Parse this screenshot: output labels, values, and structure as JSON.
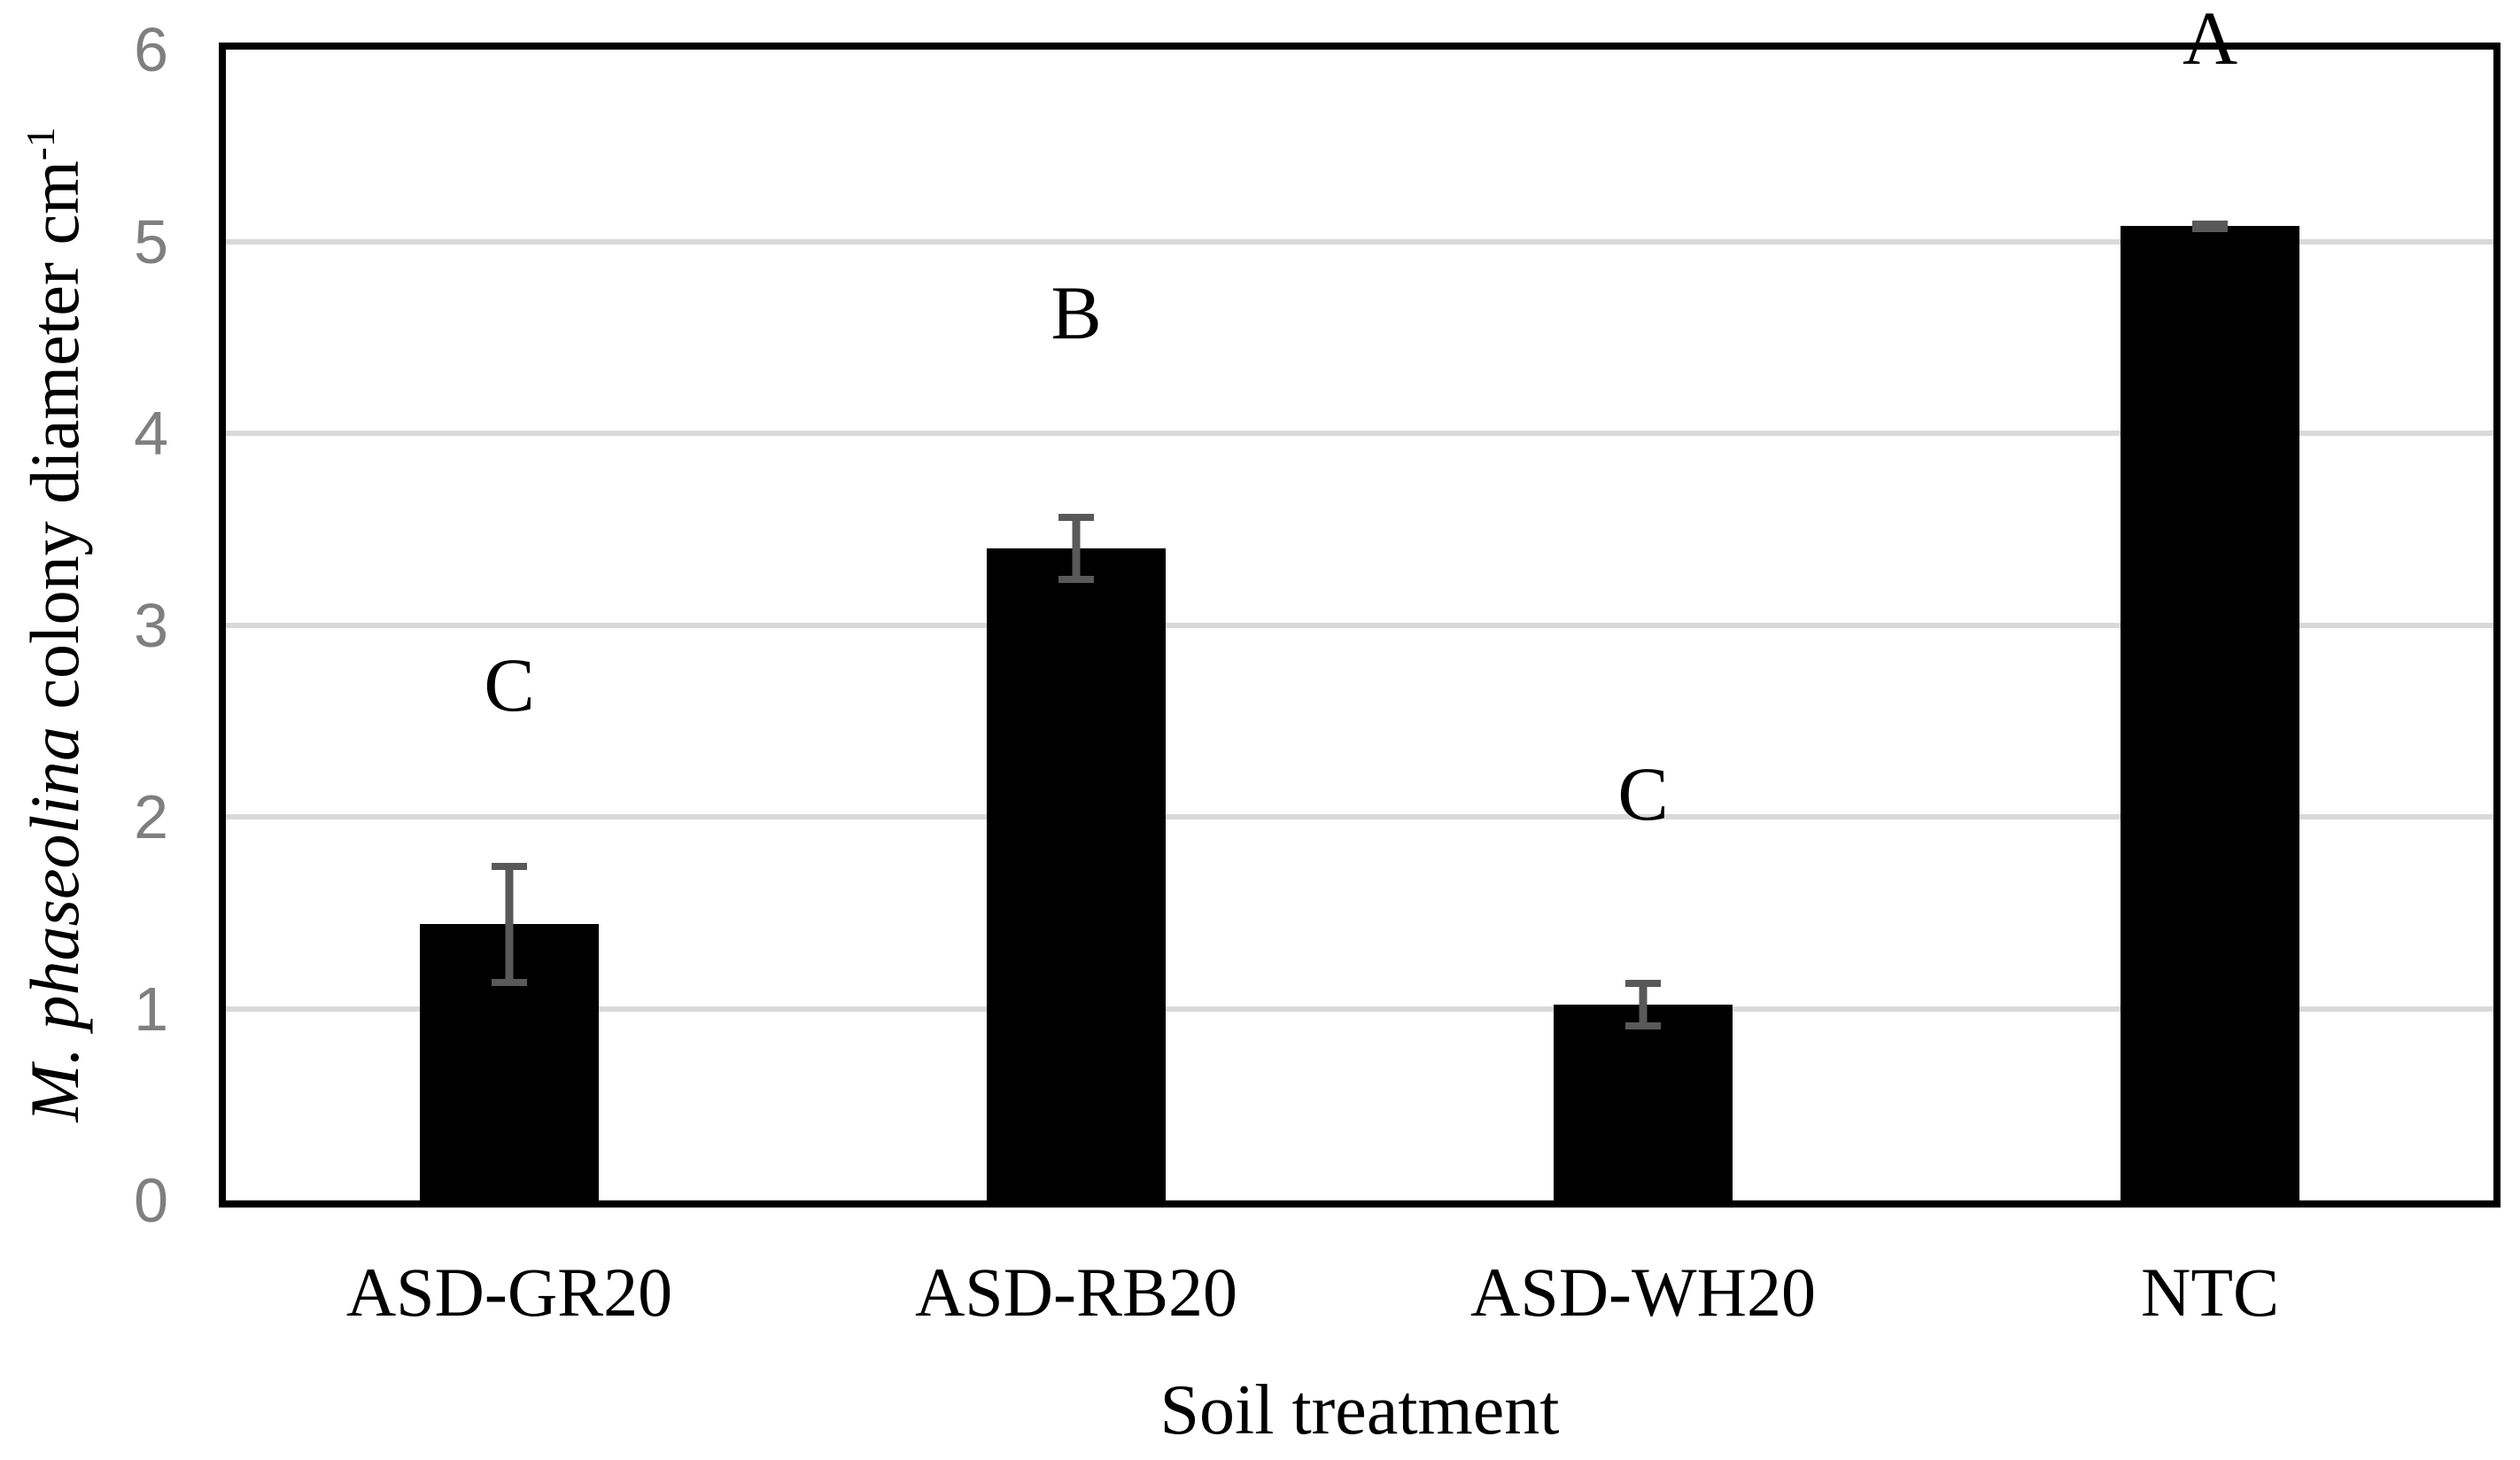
{
  "chart_data": {
    "type": "bar",
    "categories": [
      "ASD-GR20",
      "ASD-RB20",
      "ASD-WH20",
      "NTC"
    ],
    "values": [
      1.44,
      3.4,
      1.02,
      5.08
    ],
    "error_bars": [
      0.32,
      0.18,
      0.13,
      0.03
    ],
    "significance_letters": [
      "C",
      "B",
      "C",
      "A"
    ],
    "significance_letter_y": [
      2.69,
      4.63,
      2.12,
      6.06
    ],
    "xlabel": "Soil treatment",
    "ylabel": {
      "italic": "M. phaseolina",
      "regular": " colony diameter cm",
      "superscript": "-1"
    },
    "ylim": [
      0,
      6
    ],
    "yticks": [
      "0",
      "1",
      "2",
      "3",
      "4",
      "5",
      "6"
    ],
    "gridlines_at": [
      1,
      2,
      3,
      4,
      5
    ],
    "grid": "horizontal",
    "legend_position": "none",
    "colors": {
      "bar": "#000000",
      "error_bar": "#595959",
      "gridline": "#d9d9d9",
      "axis_border": "#000000",
      "y_tick_label": "#7f7f7f",
      "text": "#000000",
      "background": "#ffffff"
    }
  }
}
